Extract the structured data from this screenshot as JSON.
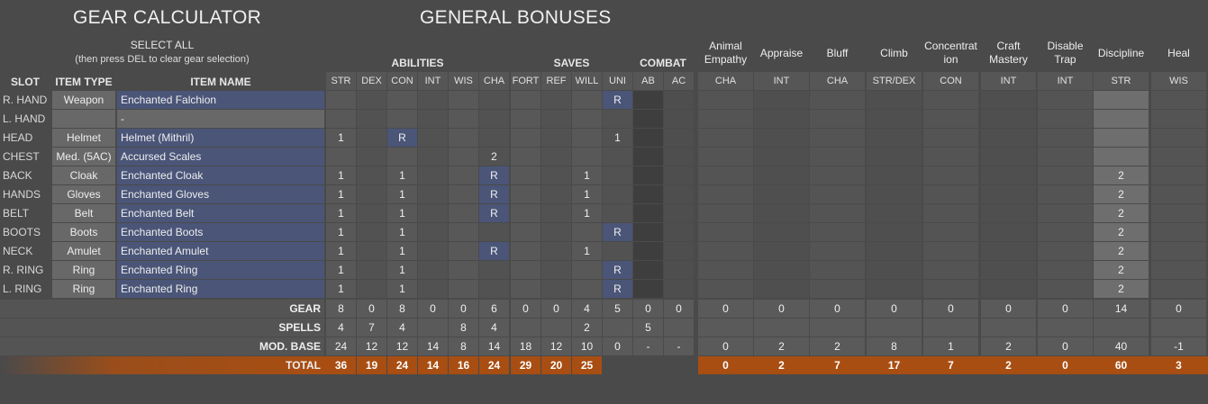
{
  "titles": {
    "gear_calculator": "GEAR CALCULATOR",
    "general_bonuses": "GENERAL BONUSES"
  },
  "select_all": {
    "label": "SELECT ALL",
    "hint": "(then press DEL to clear gear selection)"
  },
  "headers": {
    "slot": "SLOT",
    "item_type": "ITEM TYPE",
    "item_name": "ITEM NAME"
  },
  "groups": {
    "abilities": "ABILITIES",
    "saves": "SAVES",
    "combat": "COMBAT"
  },
  "columns": [
    "STR",
    "DEX",
    "CON",
    "INT",
    "WIS",
    "CHA",
    "FORT",
    "REF",
    "WILL",
    "UNI",
    "AB",
    "AC"
  ],
  "skills": [
    {
      "name": "Animal Empathy",
      "ability": "CHA"
    },
    {
      "name": "Appraise",
      "ability": "INT"
    },
    {
      "name": "Bluff",
      "ability": "CHA"
    },
    {
      "name": "Climb",
      "ability": "STR/DEX"
    },
    {
      "name": "Concentrat ion",
      "ability": "CON"
    },
    {
      "name": "Craft Mastery",
      "ability": "INT"
    },
    {
      "name": "Disable Trap",
      "ability": "INT"
    },
    {
      "name": "Discipline",
      "ability": "STR"
    },
    {
      "name": "Heal",
      "ability": "WIS"
    }
  ],
  "rows": [
    {
      "slot": "R. HAND",
      "type": "Weapon",
      "name": "Enchanted Falchion",
      "vals": [
        "",
        "",
        "",
        "",
        "",
        "",
        "",
        "",
        "",
        "R",
        "",
        ""
      ],
      "skills": [
        "",
        "",
        "",
        "",
        "",
        "",
        "",
        "",
        ""
      ]
    },
    {
      "slot": "L. HAND",
      "type": "",
      "name": "-",
      "vals": [
        "",
        "",
        "",
        "",
        "",
        "",
        "",
        "",
        "",
        "",
        "",
        ""
      ],
      "skills": [
        "",
        "",
        "",
        "",
        "",
        "",
        "",
        "",
        ""
      ]
    },
    {
      "slot": "HEAD",
      "type": "Helmet",
      "name": "Helmet (Mithril)",
      "vals": [
        "1",
        "",
        "R",
        "",
        "",
        "",
        "",
        "",
        "",
        "1",
        "",
        ""
      ],
      "skills": [
        "",
        "",
        "",
        "",
        "",
        "",
        "",
        "",
        ""
      ]
    },
    {
      "slot": "CHEST",
      "type": "Med. (5AC)",
      "name": "Accursed Scales",
      "vals": [
        "",
        "",
        "",
        "",
        "",
        "2",
        "",
        "",
        "",
        "",
        "",
        ""
      ],
      "skills": [
        "",
        "",
        "",
        "",
        "",
        "",
        "",
        "",
        ""
      ]
    },
    {
      "slot": "BACK",
      "type": "Cloak",
      "name": "Enchanted Cloak",
      "vals": [
        "1",
        "",
        "1",
        "",
        "",
        "R",
        "",
        "",
        "1",
        "",
        "",
        ""
      ],
      "skills": [
        "",
        "",
        "",
        "",
        "",
        "",
        "",
        "2",
        ""
      ]
    },
    {
      "slot": "HANDS",
      "type": "Gloves",
      "name": "Enchanted Gloves",
      "vals": [
        "1",
        "",
        "1",
        "",
        "",
        "R",
        "",
        "",
        "1",
        "",
        "",
        ""
      ],
      "skills": [
        "",
        "",
        "",
        "",
        "",
        "",
        "",
        "2",
        ""
      ]
    },
    {
      "slot": "BELT",
      "type": "Belt",
      "name": "Enchanted Belt",
      "vals": [
        "1",
        "",
        "1",
        "",
        "",
        "R",
        "",
        "",
        "1",
        "",
        "",
        ""
      ],
      "skills": [
        "",
        "",
        "",
        "",
        "",
        "",
        "",
        "2",
        ""
      ]
    },
    {
      "slot": "BOOTS",
      "type": "Boots",
      "name": "Enchanted Boots",
      "vals": [
        "1",
        "",
        "1",
        "",
        "",
        "",
        "",
        "",
        "",
        "R",
        "",
        ""
      ],
      "skills": [
        "",
        "",
        "",
        "",
        "",
        "",
        "",
        "2",
        ""
      ]
    },
    {
      "slot": "NECK",
      "type": "Amulet",
      "name": "Enchanted Amulet",
      "vals": [
        "1",
        "",
        "1",
        "",
        "",
        "R",
        "",
        "",
        "1",
        "",
        "",
        ""
      ],
      "skills": [
        "",
        "",
        "",
        "",
        "",
        "",
        "",
        "2",
        ""
      ]
    },
    {
      "slot": "R. RING",
      "type": "Ring",
      "name": "Enchanted Ring",
      "vals": [
        "1",
        "",
        "1",
        "",
        "",
        "",
        "",
        "",
        "",
        "R",
        "",
        ""
      ],
      "skills": [
        "",
        "",
        "",
        "",
        "",
        "",
        "",
        "2",
        ""
      ]
    },
    {
      "slot": "L. RING",
      "type": "Ring",
      "name": "Enchanted Ring",
      "vals": [
        "1",
        "",
        "1",
        "",
        "",
        "",
        "",
        "",
        "",
        "R",
        "",
        ""
      ],
      "skills": [
        "",
        "",
        "",
        "",
        "",
        "",
        "",
        "2",
        ""
      ]
    }
  ],
  "summary": [
    {
      "label": "GEAR",
      "vals": [
        "8",
        "0",
        "8",
        "0",
        "0",
        "6",
        "0",
        "0",
        "4",
        "5",
        "0",
        "0"
      ],
      "skills": [
        "0",
        "0",
        "0",
        "0",
        "0",
        "0",
        "0",
        "14",
        "0"
      ]
    },
    {
      "label": "SPELLS",
      "vals": [
        "4",
        "7",
        "4",
        "",
        "8",
        "4",
        "",
        "",
        "2",
        "",
        "5",
        ""
      ],
      "skills": [
        "",
        "",
        "",
        "",
        "",
        "",
        "",
        "",
        ""
      ]
    },
    {
      "label": "MOD. BASE",
      "vals": [
        "24",
        "12",
        "12",
        "14",
        "8",
        "14",
        "18",
        "12",
        "10",
        "0",
        "-",
        "-"
      ],
      "skills": [
        "0",
        "2",
        "2",
        "8",
        "1",
        "2",
        "0",
        "40",
        "-1"
      ]
    },
    {
      "label": "TOTAL",
      "vals": [
        "36",
        "19",
        "24",
        "14",
        "16",
        "24",
        "29",
        "20",
        "25",
        "",
        "",
        ""
      ],
      "skills": [
        "0",
        "2",
        "7",
        "17",
        "7",
        "2",
        "0",
        "60",
        "3"
      ]
    }
  ],
  "colors": {
    "blue_cell": "#4a5578",
    "total": "#a84e12",
    "gray_cell": "#686868"
  }
}
